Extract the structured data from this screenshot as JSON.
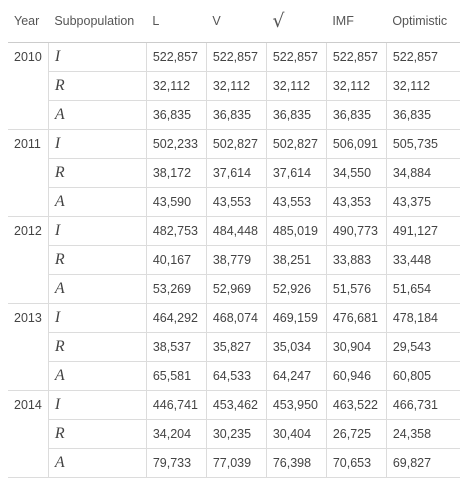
{
  "table": {
    "header": [
      "Year",
      "Subpopulation",
      "L",
      "V",
      "√",
      "IMF",
      "Optimistic"
    ],
    "groups": [
      {
        "year": "2010",
        "rows": [
          {
            "sub": "I",
            "values": [
              "522,857",
              "522,857",
              "522,857",
              "522,857",
              "522,857"
            ]
          },
          {
            "sub": "R",
            "values": [
              "32,112",
              "32,112",
              "32,112",
              "32,112",
              "32,112"
            ]
          },
          {
            "sub": "A",
            "values": [
              "36,835",
              "36,835",
              "36,835",
              "36,835",
              "36,835"
            ]
          }
        ]
      },
      {
        "year": "2011",
        "rows": [
          {
            "sub": "I",
            "values": [
              "502,233",
              "502,827",
              "502,827",
              "506,091",
              "505,735"
            ]
          },
          {
            "sub": "R",
            "values": [
              "38,172",
              "37,614",
              "37,614",
              "34,550",
              "34,884"
            ]
          },
          {
            "sub": "A",
            "values": [
              "43,590",
              "43,553",
              "43,553",
              "43,353",
              "43,375"
            ]
          }
        ]
      },
      {
        "year": "2012",
        "rows": [
          {
            "sub": "I",
            "values": [
              "482,753",
              "484,448",
              "485,019",
              "490,773",
              "491,127"
            ]
          },
          {
            "sub": "R",
            "values": [
              "40,167",
              "38,779",
              "38,251",
              "33,883",
              "33,448"
            ]
          },
          {
            "sub": "A",
            "values": [
              "53,269",
              "52,969",
              "52,926",
              "51,576",
              "51,654"
            ]
          }
        ]
      },
      {
        "year": "2013",
        "rows": [
          {
            "sub": "I",
            "values": [
              "464,292",
              "468,074",
              "469,159",
              "476,681",
              "478,184"
            ]
          },
          {
            "sub": "R",
            "values": [
              "38,537",
              "35,827",
              "35,034",
              "30,904",
              "29,543"
            ]
          },
          {
            "sub": "A",
            "values": [
              "65,581",
              "64,533",
              "64,247",
              "60,946",
              "60,805"
            ]
          }
        ]
      },
      {
        "year": "2014",
        "rows": [
          {
            "sub": "I",
            "values": [
              "446,741",
              "453,462",
              "453,950",
              "463,522",
              "466,731"
            ]
          },
          {
            "sub": "R",
            "values": [
              "34,204",
              "30,235",
              "30,404",
              "26,725",
              "24,358"
            ]
          },
          {
            "sub": "A",
            "values": [
              "79,733",
              "77,039",
              "76,398",
              "70,653",
              "69,827"
            ]
          }
        ]
      }
    ]
  }
}
